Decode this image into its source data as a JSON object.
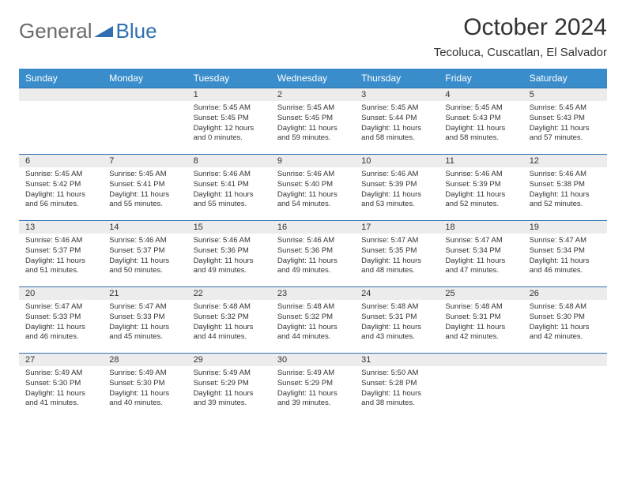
{
  "logo": {
    "text1": "General",
    "text2": "Blue"
  },
  "title": "October 2024",
  "location": "Tecoluca, Cuscatlan, El Salvador",
  "colors": {
    "header_bg": "#3a8dcb",
    "header_text": "#ffffff",
    "daynum_bg": "#ececec",
    "border": "#2f6fb0",
    "logo_gray": "#6b6b6b",
    "logo_blue": "#2f6fb0"
  },
  "day_names": [
    "Sunday",
    "Monday",
    "Tuesday",
    "Wednesday",
    "Thursday",
    "Friday",
    "Saturday"
  ],
  "weeks": [
    [
      null,
      null,
      {
        "n": "1",
        "sr": "5:45 AM",
        "ss": "5:45 PM",
        "dl": "12 hours and 0 minutes."
      },
      {
        "n": "2",
        "sr": "5:45 AM",
        "ss": "5:45 PM",
        "dl": "11 hours and 59 minutes."
      },
      {
        "n": "3",
        "sr": "5:45 AM",
        "ss": "5:44 PM",
        "dl": "11 hours and 58 minutes."
      },
      {
        "n": "4",
        "sr": "5:45 AM",
        "ss": "5:43 PM",
        "dl": "11 hours and 58 minutes."
      },
      {
        "n": "5",
        "sr": "5:45 AM",
        "ss": "5:43 PM",
        "dl": "11 hours and 57 minutes."
      }
    ],
    [
      {
        "n": "6",
        "sr": "5:45 AM",
        "ss": "5:42 PM",
        "dl": "11 hours and 56 minutes."
      },
      {
        "n": "7",
        "sr": "5:45 AM",
        "ss": "5:41 PM",
        "dl": "11 hours and 55 minutes."
      },
      {
        "n": "8",
        "sr": "5:46 AM",
        "ss": "5:41 PM",
        "dl": "11 hours and 55 minutes."
      },
      {
        "n": "9",
        "sr": "5:46 AM",
        "ss": "5:40 PM",
        "dl": "11 hours and 54 minutes."
      },
      {
        "n": "10",
        "sr": "5:46 AM",
        "ss": "5:39 PM",
        "dl": "11 hours and 53 minutes."
      },
      {
        "n": "11",
        "sr": "5:46 AM",
        "ss": "5:39 PM",
        "dl": "11 hours and 52 minutes."
      },
      {
        "n": "12",
        "sr": "5:46 AM",
        "ss": "5:38 PM",
        "dl": "11 hours and 52 minutes."
      }
    ],
    [
      {
        "n": "13",
        "sr": "5:46 AM",
        "ss": "5:37 PM",
        "dl": "11 hours and 51 minutes."
      },
      {
        "n": "14",
        "sr": "5:46 AM",
        "ss": "5:37 PM",
        "dl": "11 hours and 50 minutes."
      },
      {
        "n": "15",
        "sr": "5:46 AM",
        "ss": "5:36 PM",
        "dl": "11 hours and 49 minutes."
      },
      {
        "n": "16",
        "sr": "5:46 AM",
        "ss": "5:36 PM",
        "dl": "11 hours and 49 minutes."
      },
      {
        "n": "17",
        "sr": "5:47 AM",
        "ss": "5:35 PM",
        "dl": "11 hours and 48 minutes."
      },
      {
        "n": "18",
        "sr": "5:47 AM",
        "ss": "5:34 PM",
        "dl": "11 hours and 47 minutes."
      },
      {
        "n": "19",
        "sr": "5:47 AM",
        "ss": "5:34 PM",
        "dl": "11 hours and 46 minutes."
      }
    ],
    [
      {
        "n": "20",
        "sr": "5:47 AM",
        "ss": "5:33 PM",
        "dl": "11 hours and 46 minutes."
      },
      {
        "n": "21",
        "sr": "5:47 AM",
        "ss": "5:33 PM",
        "dl": "11 hours and 45 minutes."
      },
      {
        "n": "22",
        "sr": "5:48 AM",
        "ss": "5:32 PM",
        "dl": "11 hours and 44 minutes."
      },
      {
        "n": "23",
        "sr": "5:48 AM",
        "ss": "5:32 PM",
        "dl": "11 hours and 44 minutes."
      },
      {
        "n": "24",
        "sr": "5:48 AM",
        "ss": "5:31 PM",
        "dl": "11 hours and 43 minutes."
      },
      {
        "n": "25",
        "sr": "5:48 AM",
        "ss": "5:31 PM",
        "dl": "11 hours and 42 minutes."
      },
      {
        "n": "26",
        "sr": "5:48 AM",
        "ss": "5:30 PM",
        "dl": "11 hours and 42 minutes."
      }
    ],
    [
      {
        "n": "27",
        "sr": "5:49 AM",
        "ss": "5:30 PM",
        "dl": "11 hours and 41 minutes."
      },
      {
        "n": "28",
        "sr": "5:49 AM",
        "ss": "5:30 PM",
        "dl": "11 hours and 40 minutes."
      },
      {
        "n": "29",
        "sr": "5:49 AM",
        "ss": "5:29 PM",
        "dl": "11 hours and 39 minutes."
      },
      {
        "n": "30",
        "sr": "5:49 AM",
        "ss": "5:29 PM",
        "dl": "11 hours and 39 minutes."
      },
      {
        "n": "31",
        "sr": "5:50 AM",
        "ss": "5:28 PM",
        "dl": "11 hours and 38 minutes."
      },
      null,
      null
    ]
  ],
  "labels": {
    "sunrise": "Sunrise:",
    "sunset": "Sunset:",
    "daylight": "Daylight:"
  }
}
